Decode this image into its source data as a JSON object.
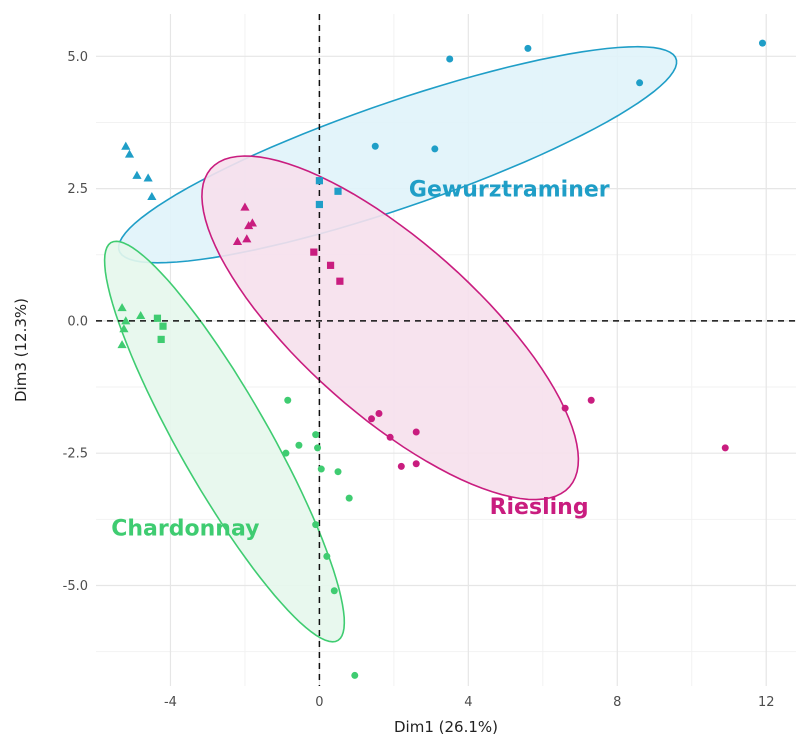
{
  "chart_data": {
    "type": "scatter",
    "xlabel": "Dim1 (26.1%)",
    "ylabel": "Dim3 (12.3%)",
    "xlim": [
      -6,
      12.8
    ],
    "ylim": [
      -6.9,
      5.8
    ],
    "x_ticks": [
      -4,
      0,
      4,
      8,
      12
    ],
    "x_tick_labels": [
      "-4",
      "0",
      "4",
      "8",
      "12"
    ],
    "y_ticks": [
      -5,
      -2.5,
      0,
      2.5,
      5
    ],
    "y_tick_labels": [
      "-5.0",
      "-2.5",
      "0.0",
      "2.5",
      "5.0"
    ],
    "grid": true,
    "reference_lines": {
      "x": 0,
      "y": 0,
      "style": "dashed"
    },
    "groups": [
      {
        "name": "Gewurztraminer",
        "color": "#1f9ec7",
        "fill": "#e0f3fa",
        "label_position": {
          "x": 5.1,
          "y": 2.5
        },
        "ellipse": {
          "cx": 2.1,
          "cy": 3.14,
          "semi_major": 7.7,
          "semi_minor": 1.02,
          "angle_deg": 13.4
        },
        "triangles": [
          [
            -5.2,
            3.3
          ],
          [
            -5.1,
            3.15
          ],
          [
            -4.9,
            2.75
          ],
          [
            -4.6,
            2.7
          ],
          [
            -4.5,
            2.35
          ]
        ],
        "squares": [
          [
            0,
            2.65
          ],
          [
            0.5,
            2.45
          ],
          [
            0,
            2.2
          ]
        ],
        "circles": [
          [
            3.5,
            4.95
          ],
          [
            5.6,
            5.15
          ],
          [
            8.6,
            4.5
          ],
          [
            11.9,
            5.25
          ],
          [
            1.5,
            3.3
          ],
          [
            3.1,
            3.25
          ]
        ]
      },
      {
        "name": "Riesling",
        "color": "#c91d7f",
        "fill": "#f6e0ec",
        "label_position": {
          "x": 5.9,
          "y": -3.5
        },
        "ellipse": {
          "cx": 1.9,
          "cy": -0.13,
          "semi_major": 5.72,
          "semi_minor": 1.84,
          "angle_deg": -29.6
        },
        "triangles": [
          [
            -2.0,
            2.15
          ],
          [
            -1.9,
            1.8
          ],
          [
            -1.8,
            1.85
          ],
          [
            -2.2,
            1.5
          ],
          [
            -1.95,
            1.55
          ]
        ],
        "squares": [
          [
            -0.15,
            1.3
          ],
          [
            0.3,
            1.05
          ],
          [
            0.55,
            0.75
          ]
        ],
        "circles": [
          [
            1.4,
            -1.85
          ],
          [
            1.6,
            -1.75
          ],
          [
            1.9,
            -2.2
          ],
          [
            2.6,
            -2.1
          ],
          [
            2.2,
            -2.75
          ],
          [
            2.6,
            -2.7
          ],
          [
            6.6,
            -1.65
          ],
          [
            7.3,
            -1.5
          ],
          [
            10.9,
            -2.4
          ]
        ]
      },
      {
        "name": "Chardonnay",
        "color": "#3fcc71",
        "fill": "#e6f7ec",
        "label_position": {
          "x": -3.6,
          "y": -3.9
        },
        "ellipse": {
          "cx": -2.55,
          "cy": -2.28,
          "semi_major": 4.85,
          "semi_minor": 1.08,
          "angle_deg": -50.1
        },
        "triangles": [
          [
            -5.3,
            0.25
          ],
          [
            -5.25,
            -0.15
          ],
          [
            -5.2,
            0.0
          ],
          [
            -5.3,
            -0.45
          ],
          [
            -4.8,
            0.1
          ]
        ],
        "squares": [
          [
            -4.35,
            0.05
          ],
          [
            -4.2,
            -0.1
          ],
          [
            -4.25,
            -0.35
          ]
        ],
        "circles": [
          [
            -0.85,
            -1.5
          ],
          [
            -0.55,
            -2.35
          ],
          [
            -0.9,
            -2.5
          ],
          [
            -0.1,
            -2.15
          ],
          [
            -0.05,
            -2.4
          ],
          [
            0.05,
            -2.8
          ],
          [
            0.5,
            -2.85
          ],
          [
            0.8,
            -3.35
          ],
          [
            -0.1,
            -3.85
          ],
          [
            0.2,
            -4.45
          ],
          [
            0.4,
            -5.1
          ],
          [
            0.95,
            -6.7
          ]
        ]
      }
    ]
  }
}
